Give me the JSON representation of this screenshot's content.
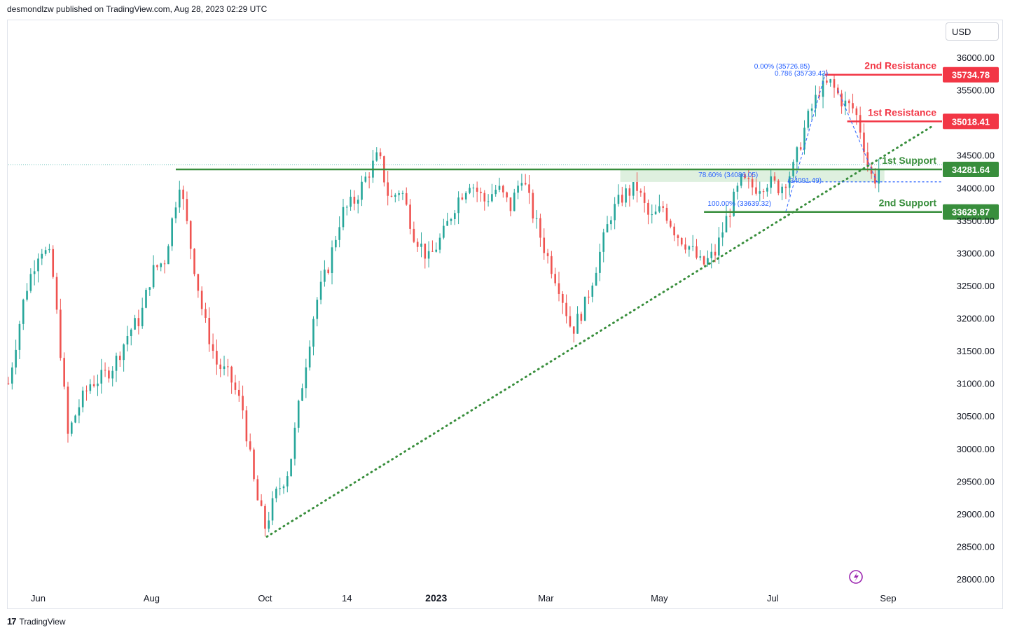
{
  "header": {
    "text": "desmondlzw published on TradingView.com, Aug 28, 2023 02:29 UTC"
  },
  "currency": {
    "label": "USD"
  },
  "footer": {
    "brand": "TradingView"
  },
  "colors": {
    "up": "#26a69a",
    "down": "#ef5350",
    "resistance": "#f23645",
    "support": "#388e3c",
    "fib": "#2962ff",
    "zone": "#c8e6c9"
  },
  "chart_data": {
    "type": "candlestick",
    "symbol_currency": "USD",
    "yticks": [
      36000,
      35500,
      34500,
      34000,
      33500,
      33000,
      32500,
      32000,
      31500,
      31000,
      30500,
      30000,
      29500,
      29000,
      28500,
      28000
    ],
    "ytick_labels": [
      "36000.00",
      "35500.00",
      "34500.00",
      "34000.00",
      "33500.00",
      "33000.00",
      "32500.00",
      "32000.00",
      "31500.00",
      "31000.00",
      "30500.00",
      "30000.00",
      "29500.00",
      "29000.00",
      "28500.00",
      "28000.00"
    ],
    "ylim": [
      27800,
      36400
    ],
    "xlim": [
      "2022-05-16",
      "2023-09-30"
    ],
    "xticks": [
      {
        "label": "Jun",
        "date": "2022-06-01",
        "bold": false
      },
      {
        "label": "Aug",
        "date": "2022-08-01",
        "bold": false
      },
      {
        "label": "Oct",
        "date": "2022-10-01",
        "bold": false
      },
      {
        "label": "14",
        "date": "2022-11-14",
        "bold": false
      },
      {
        "label": "2023",
        "date": "2023-01-01",
        "bold": true
      },
      {
        "label": "Mar",
        "date": "2023-03-01",
        "bold": false
      },
      {
        "label": "May",
        "date": "2023-05-01",
        "bold": false
      },
      {
        "label": "Jul",
        "date": "2023-07-01",
        "bold": false
      },
      {
        "label": "Sep",
        "date": "2023-09-01",
        "bold": false
      }
    ],
    "closes": [
      [
        "2022-05-16",
        31000
      ],
      [
        "2022-05-25",
        32400
      ],
      [
        "2022-06-02",
        33100
      ],
      [
        "2022-06-08",
        32900
      ],
      [
        "2022-06-13",
        31500
      ],
      [
        "2022-06-17",
        30200
      ],
      [
        "2022-06-22",
        30600
      ],
      [
        "2022-06-29",
        31000
      ],
      [
        "2022-07-06",
        31100
      ],
      [
        "2022-07-12",
        31300
      ],
      [
        "2022-07-20",
        31800
      ],
      [
        "2022-07-26",
        32000
      ],
      [
        "2022-08-01",
        32700
      ],
      [
        "2022-08-08",
        32900
      ],
      [
        "2022-08-16",
        34100
      ],
      [
        "2022-08-22",
        33100
      ],
      [
        "2022-08-29",
        32000
      ],
      [
        "2022-09-05",
        31300
      ],
      [
        "2022-09-12",
        31100
      ],
      [
        "2022-09-19",
        30600
      ],
      [
        "2022-09-26",
        29300
      ],
      [
        "2022-10-01",
        28800
      ],
      [
        "2022-10-07",
        29300
      ],
      [
        "2022-10-14",
        29700
      ],
      [
        "2022-10-21",
        31000
      ],
      [
        "2022-10-28",
        32200
      ],
      [
        "2022-11-04",
        32800
      ],
      [
        "2022-11-11",
        33600
      ],
      [
        "2022-11-18",
        33800
      ],
      [
        "2022-11-25",
        34200
      ],
      [
        "2022-12-01",
        34500
      ],
      [
        "2022-12-07",
        33800
      ],
      [
        "2022-12-13",
        34000
      ],
      [
        "2022-12-20",
        33300
      ],
      [
        "2022-12-28",
        32900
      ],
      [
        "2023-01-05",
        33300
      ],
      [
        "2023-01-12",
        33800
      ],
      [
        "2023-01-19",
        34100
      ],
      [
        "2023-01-27",
        33800
      ],
      [
        "2023-02-03",
        34000
      ],
      [
        "2023-02-10",
        33700
      ],
      [
        "2023-02-16",
        34200
      ],
      [
        "2023-02-22",
        33600
      ],
      [
        "2023-03-01",
        33000
      ],
      [
        "2023-03-08",
        32500
      ],
      [
        "2023-03-15",
        31800
      ],
      [
        "2023-03-22",
        32200
      ],
      [
        "2023-03-29",
        32900
      ],
      [
        "2023-04-05",
        33600
      ],
      [
        "2023-04-12",
        33900
      ],
      [
        "2023-04-19",
        34000
      ],
      [
        "2023-04-26",
        33500
      ],
      [
        "2023-05-03",
        33700
      ],
      [
        "2023-05-10",
        33300
      ],
      [
        "2023-05-17",
        33100
      ],
      [
        "2023-05-24",
        32800
      ],
      [
        "2023-05-31",
        33000
      ],
      [
        "2023-06-07",
        33600
      ],
      [
        "2023-06-14",
        34100
      ],
      [
        "2023-06-21",
        34000
      ],
      [
        "2023-06-28",
        34100
      ],
      [
        "2023-07-05",
        34000
      ],
      [
        "2023-07-12",
        34300
      ],
      [
        "2023-07-19",
        35000
      ],
      [
        "2023-07-26",
        35500
      ],
      [
        "2023-08-01",
        35600
      ],
      [
        "2023-08-08",
        35300
      ],
      [
        "2023-08-14",
        35200
      ],
      [
        "2023-08-18",
        34800
      ],
      [
        "2023-08-22",
        34200
      ],
      [
        "2023-08-25",
        34150
      ],
      [
        "2023-08-28",
        34350
      ]
    ],
    "levels": [
      {
        "name": "2nd Resistance",
        "value": 35734.78,
        "value_label": "35734.78",
        "type": "resistance"
      },
      {
        "name": "1st Resistance",
        "value": 35018.41,
        "value_label": "35018.41",
        "type": "resistance"
      },
      {
        "name": "1st Support",
        "value": 34281.64,
        "value_label": "34281.64",
        "type": "support"
      },
      {
        "name": "2nd Support",
        "value": 33629.87,
        "value_label": "33629.87",
        "type": "support"
      }
    ],
    "fib_annotations": [
      {
        "text": "0.00% (35726.85)",
        "value": 35726.85
      },
      {
        "text": "0.786 (35739.43)",
        "value": 35739.43
      },
      {
        "text": "78.60% (34086.05)",
        "value": 34086.05
      },
      {
        "text": "(34091.49)",
        "value": 34091.49
      },
      {
        "text": "100.00% (33639.32)",
        "value": 33639.32
      }
    ],
    "support_zone": {
      "from": "2023-04-10",
      "to": "2023-08-30",
      "low": 34090,
      "high": 34281.64
    },
    "trendline": {
      "start": {
        "date": "2022-10-02",
        "value": 28650
      },
      "end": {
        "date": "2023-09-25",
        "value": 34950
      },
      "style": "dotted"
    },
    "last_price": 34350,
    "grid": false,
    "legend": "none"
  }
}
